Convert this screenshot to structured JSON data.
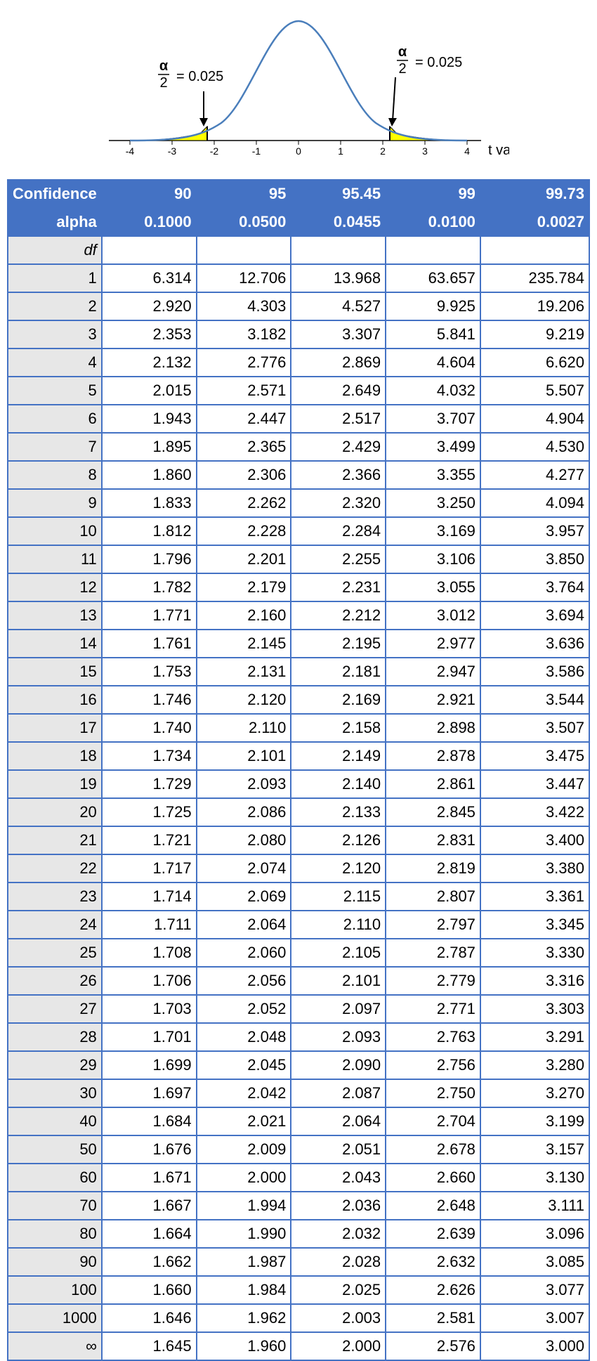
{
  "diagram": {
    "left_label": "= 0.025",
    "right_label": "= 0.025",
    "axis_label": "t value",
    "ticks": [
      "-4",
      "-3",
      "-2",
      "-1",
      "0",
      "1",
      "2",
      "3",
      "4"
    ],
    "curve_color": "#4a7ebb",
    "fill_color": "#ffff00",
    "axis_color": "#000000"
  },
  "table": {
    "header": {
      "row1_label": "Confidence",
      "row1": [
        "90",
        "95",
        "95.45",
        "99",
        "99.73"
      ],
      "row2_label": "alpha",
      "row2": [
        "0.1000",
        "0.0500",
        "0.0455",
        "0.0100",
        "0.0027"
      ],
      "df_label": "df"
    },
    "rows": [
      {
        "df": "1",
        "v": [
          "6.314",
          "12.706",
          "13.968",
          "63.657",
          "235.784"
        ]
      },
      {
        "df": "2",
        "v": [
          "2.920",
          "4.303",
          "4.527",
          "9.925",
          "19.206"
        ]
      },
      {
        "df": "3",
        "v": [
          "2.353",
          "3.182",
          "3.307",
          "5.841",
          "9.219"
        ]
      },
      {
        "df": "4",
        "v": [
          "2.132",
          "2.776",
          "2.869",
          "4.604",
          "6.620"
        ]
      },
      {
        "df": "5",
        "v": [
          "2.015",
          "2.571",
          "2.649",
          "4.032",
          "5.507"
        ]
      },
      {
        "df": "6",
        "v": [
          "1.943",
          "2.447",
          "2.517",
          "3.707",
          "4.904"
        ]
      },
      {
        "df": "7",
        "v": [
          "1.895",
          "2.365",
          "2.429",
          "3.499",
          "4.530"
        ]
      },
      {
        "df": "8",
        "v": [
          "1.860",
          "2.306",
          "2.366",
          "3.355",
          "4.277"
        ]
      },
      {
        "df": "9",
        "v": [
          "1.833",
          "2.262",
          "2.320",
          "3.250",
          "4.094"
        ]
      },
      {
        "df": "10",
        "v": [
          "1.812",
          "2.228",
          "2.284",
          "3.169",
          "3.957"
        ]
      },
      {
        "df": "11",
        "v": [
          "1.796",
          "2.201",
          "2.255",
          "3.106",
          "3.850"
        ]
      },
      {
        "df": "12",
        "v": [
          "1.782",
          "2.179",
          "2.231",
          "3.055",
          "3.764"
        ]
      },
      {
        "df": "13",
        "v": [
          "1.771",
          "2.160",
          "2.212",
          "3.012",
          "3.694"
        ]
      },
      {
        "df": "14",
        "v": [
          "1.761",
          "2.145",
          "2.195",
          "2.977",
          "3.636"
        ]
      },
      {
        "df": "15",
        "v": [
          "1.753",
          "2.131",
          "2.181",
          "2.947",
          "3.586"
        ]
      },
      {
        "df": "16",
        "v": [
          "1.746",
          "2.120",
          "2.169",
          "2.921",
          "3.544"
        ]
      },
      {
        "df": "17",
        "v": [
          "1.740",
          "2.110",
          "2.158",
          "2.898",
          "3.507"
        ]
      },
      {
        "df": "18",
        "v": [
          "1.734",
          "2.101",
          "2.149",
          "2.878",
          "3.475"
        ]
      },
      {
        "df": "19",
        "v": [
          "1.729",
          "2.093",
          "2.140",
          "2.861",
          "3.447"
        ]
      },
      {
        "df": "20",
        "v": [
          "1.725",
          "2.086",
          "2.133",
          "2.845",
          "3.422"
        ]
      },
      {
        "df": "21",
        "v": [
          "1.721",
          "2.080",
          "2.126",
          "2.831",
          "3.400"
        ]
      },
      {
        "df": "22",
        "v": [
          "1.717",
          "2.074",
          "2.120",
          "2.819",
          "3.380"
        ]
      },
      {
        "df": "23",
        "v": [
          "1.714",
          "2.069",
          "2.115",
          "2.807",
          "3.361"
        ]
      },
      {
        "df": "24",
        "v": [
          "1.711",
          "2.064",
          "2.110",
          "2.797",
          "3.345"
        ]
      },
      {
        "df": "25",
        "v": [
          "1.708",
          "2.060",
          "2.105",
          "2.787",
          "3.330"
        ]
      },
      {
        "df": "26",
        "v": [
          "1.706",
          "2.056",
          "2.101",
          "2.779",
          "3.316"
        ]
      },
      {
        "df": "27",
        "v": [
          "1.703",
          "2.052",
          "2.097",
          "2.771",
          "3.303"
        ]
      },
      {
        "df": "28",
        "v": [
          "1.701",
          "2.048",
          "2.093",
          "2.763",
          "3.291"
        ]
      },
      {
        "df": "29",
        "v": [
          "1.699",
          "2.045",
          "2.090",
          "2.756",
          "3.280"
        ]
      },
      {
        "df": "30",
        "v": [
          "1.697",
          "2.042",
          "2.087",
          "2.750",
          "3.270"
        ]
      },
      {
        "df": "40",
        "v": [
          "1.684",
          "2.021",
          "2.064",
          "2.704",
          "3.199"
        ]
      },
      {
        "df": "50",
        "v": [
          "1.676",
          "2.009",
          "2.051",
          "2.678",
          "3.157"
        ]
      },
      {
        "df": "60",
        "v": [
          "1.671",
          "2.000",
          "2.043",
          "2.660",
          "3.130"
        ]
      },
      {
        "df": "70",
        "v": [
          "1.667",
          "1.994",
          "2.036",
          "2.648",
          "3.111"
        ]
      },
      {
        "df": "80",
        "v": [
          "1.664",
          "1.990",
          "2.032",
          "2.639",
          "3.096"
        ]
      },
      {
        "df": "90",
        "v": [
          "1.662",
          "1.987",
          "2.028",
          "2.632",
          "3.085"
        ]
      },
      {
        "df": "100",
        "v": [
          "1.660",
          "1.984",
          "2.025",
          "2.626",
          "3.077"
        ]
      },
      {
        "df": "1000",
        "v": [
          "1.646",
          "1.962",
          "2.003",
          "2.581",
          "3.007"
        ]
      },
      {
        "df": "∞",
        "v": [
          "1.645",
          "1.960",
          "2.000",
          "2.576",
          "3.000"
        ]
      }
    ],
    "colors": {
      "header_bg": "#4472c4",
      "header_fg": "#ffffff",
      "label_bg": "#e7e7e7",
      "border": "#4472c4"
    }
  }
}
